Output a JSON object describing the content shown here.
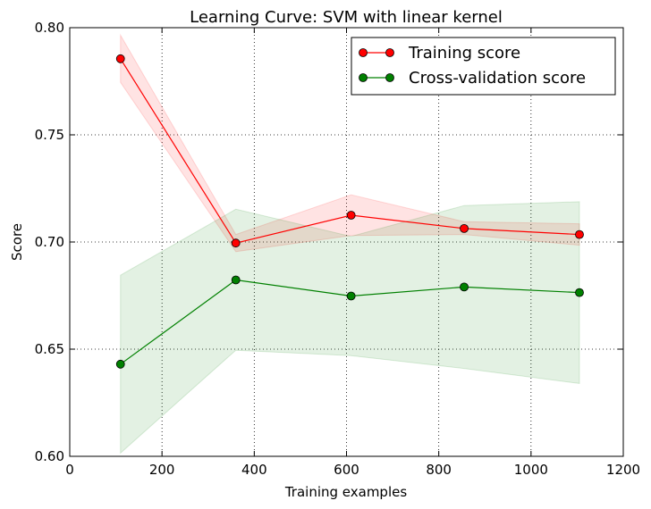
{
  "chart_data": {
    "type": "line",
    "title": "Learning Curve: SVM with linear kernel",
    "xlabel": "Training examples",
    "ylabel": "Score",
    "xlim": [
      0,
      1200
    ],
    "ylim": [
      0.6,
      0.8
    ],
    "xticks": [
      0,
      200,
      400,
      600,
      800,
      1000,
      1200
    ],
    "yticks": [
      0.6,
      0.65,
      0.7,
      0.75,
      0.8
    ],
    "xtick_labels": [
      "0",
      "200",
      "400",
      "600",
      "800",
      "1000",
      "1200"
    ],
    "ytick_labels": [
      "0.60",
      "0.65",
      "0.70",
      "0.75",
      "0.80"
    ],
    "grid": true,
    "legend_position": "top-right",
    "x": [
      110,
      360,
      610,
      855,
      1105
    ],
    "series": [
      {
        "name": "Training score",
        "color": "#ff0000",
        "values": [
          0.7855,
          0.6995,
          0.7125,
          0.7063,
          0.7035
        ],
        "band_lower": [
          0.7745,
          0.6955,
          0.703,
          0.7035,
          0.6985
        ],
        "band_upper": [
          0.7965,
          0.7035,
          0.722,
          0.7095,
          0.7085
        ]
      },
      {
        "name": "Cross-validation score",
        "color": "#008000",
        "values": [
          0.643,
          0.6823,
          0.6748,
          0.679,
          0.6764
        ],
        "band_lower": [
          0.6015,
          0.6495,
          0.647,
          0.641,
          0.634
        ],
        "band_upper": [
          0.6845,
          0.7153,
          0.7026,
          0.717,
          0.7188
        ]
      }
    ]
  }
}
